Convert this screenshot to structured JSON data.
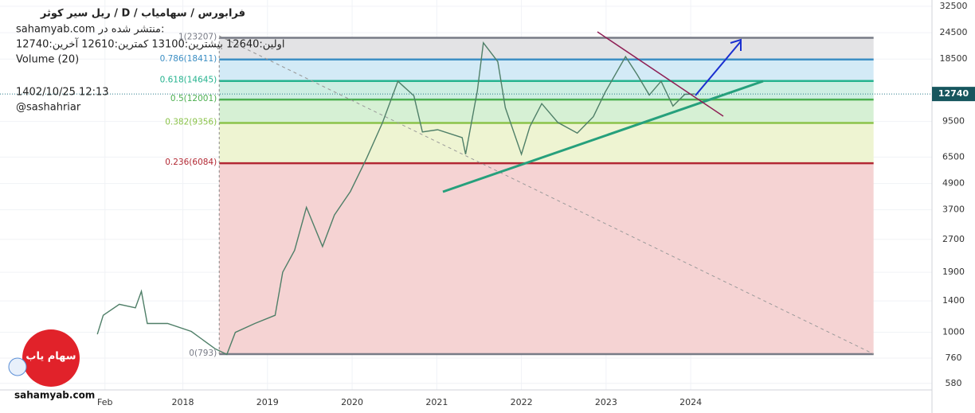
{
  "chart_data": {
    "type": "line",
    "title": "ریل سیر کوثر / D / فرابورس / سهامیاب",
    "published": "sahamyab.com منتشر شده در:",
    "ohlc_text": "اولین:12640  بیشترین:13100  کمترین:12610  آخرین:12740",
    "indicator": "Volume (20)",
    "timestamp": "1402/10/25 12:13",
    "author": "@sashahriar",
    "watermark": "sahamyab.com",
    "logo": "سهام یاب",
    "log_scale": true,
    "grid": true,
    "color": "#4f7f68",
    "x": [
      2016.99,
      2017.06,
      2017.25,
      2017.44,
      2017.51,
      2017.58,
      2017.82,
      2018.1,
      2018.38,
      2018.52,
      2018.62,
      2018.85,
      2019.09,
      2019.18,
      2019.32,
      2019.46,
      2019.65,
      2019.79,
      2019.98,
      2020.17,
      2020.36,
      2020.54,
      2020.73,
      2020.83,
      2021.01,
      2021.3,
      2021.34,
      2021.48,
      2021.55,
      2021.72,
      2021.81,
      2022.0,
      2022.1,
      2022.24,
      2022.43,
      2022.66,
      2022.85,
      2022.99,
      2023.23,
      2023.37,
      2023.51,
      2023.65,
      2023.79,
      2023.93,
      2024.05
    ],
    "values": [
      980,
      1200,
      1350,
      1300,
      1550,
      1100,
      1100,
      1010,
      840,
      790,
      1000,
      1100,
      1200,
      1900,
      2400,
      3800,
      2500,
      3500,
      4500,
      6400,
      9400,
      14600,
      12500,
      8500,
      8700,
      8000,
      6700,
      13200,
      22000,
      18000,
      11000,
      6700,
      9000,
      11500,
      9400,
      8400,
      10000,
      13000,
      19000,
      15600,
      12600,
      14600,
      11200,
      12700,
      12740
    ],
    "xlim": [
      2015.84,
      2026.85
    ],
    "xticks": [
      {
        "value": 2017.08,
        "label": "Feb"
      },
      2018,
      2019,
      2020,
      2021,
      2022,
      2023,
      2024
    ],
    "ylim": [
      541,
      34750
    ],
    "yticks": [
      580,
      760,
      1000,
      1400,
      1900,
      2700,
      3700,
      4900,
      6500,
      9500,
      18500,
      24500,
      32500
    ],
    "fib_range": [
      2018.43,
      2026.16
    ],
    "fib_levels": [
      {
        "label": "0(793)",
        "value": 793,
        "color": "#787b86",
        "fill": "#f5d3d3"
      },
      {
        "label": "0.236(6084)",
        "value": 6084,
        "color": "#b22833",
        "fill": "#eef4d2"
      },
      {
        "label": "0.382(9356)",
        "value": 9356,
        "color": "#8bc34a",
        "fill": "#d6f0d4"
      },
      {
        "label": "0.5(12001)",
        "value": 12001,
        "color": "#4caf50",
        "fill": "#cdeee2"
      },
      {
        "label": "0.618(14645)",
        "value": 14645,
        "color": "#26b38f",
        "fill": "#d3eaf6"
      },
      {
        "label": "0.786(18411)",
        "value": 18411,
        "color": "#3d8fc4",
        "fill": "#e3e3e5"
      },
      {
        "label": "1(23207)",
        "value": 23207,
        "color": "#787b86",
        "fill": "none"
      }
    ]
  }
}
